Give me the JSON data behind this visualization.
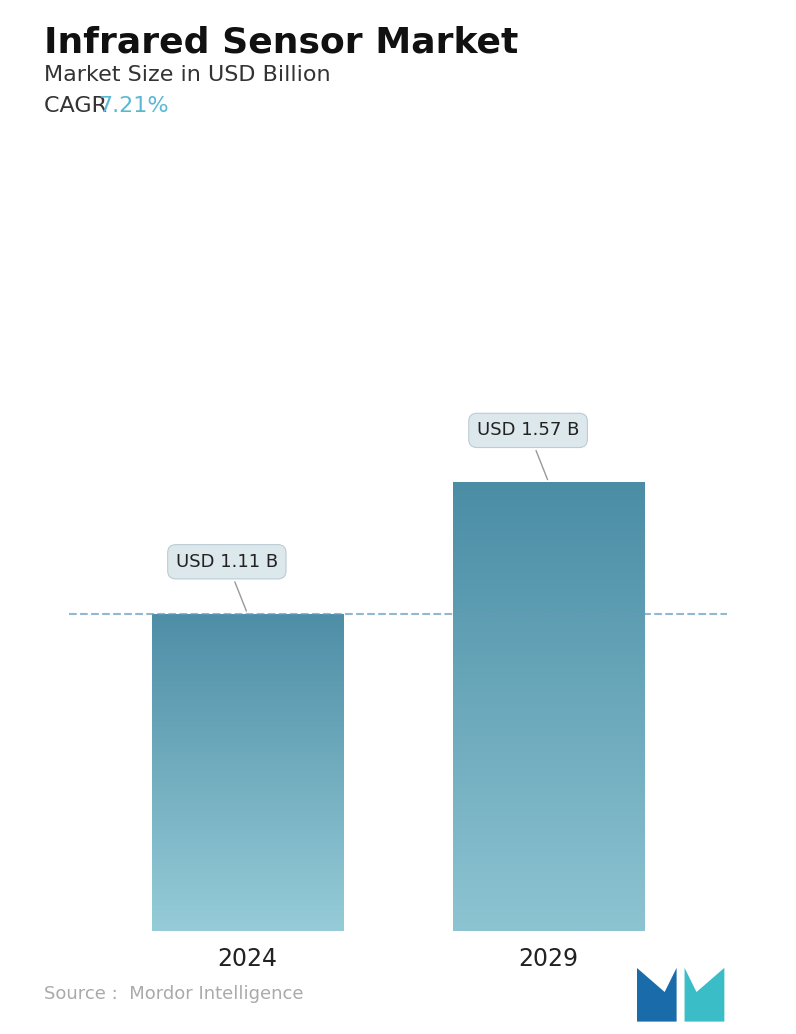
{
  "title": "Infrared Sensor Market",
  "subtitle": "Market Size in USD Billion",
  "cagr_label": "CAGR ",
  "cagr_value": "7.21%",
  "cagr_color": "#5bb8d4",
  "categories": [
    "2024",
    "2029"
  ],
  "values": [
    1.11,
    1.57
  ],
  "bar_labels": [
    "USD 1.11 B",
    "USD 1.57 B"
  ],
  "bar_top_colors": [
    "#4e8ea6",
    "#4a8da5"
  ],
  "bar_bottom_colors": [
    "#96ccd8",
    "#8dc4d2"
  ],
  "dashed_line_y": 1.11,
  "dashed_line_color": "#6699bb",
  "source_text": "Source :  Mordor Intelligence",
  "source_color": "#aaaaaa",
  "background_color": "#ffffff",
  "title_fontsize": 26,
  "subtitle_fontsize": 16,
  "cagr_fontsize": 16,
  "bar_label_fontsize": 13,
  "xlabel_fontsize": 17,
  "source_fontsize": 13,
  "ylim": [
    0,
    2.1
  ],
  "bar_width": 0.28,
  "x_positions": [
    0.28,
    0.72
  ]
}
